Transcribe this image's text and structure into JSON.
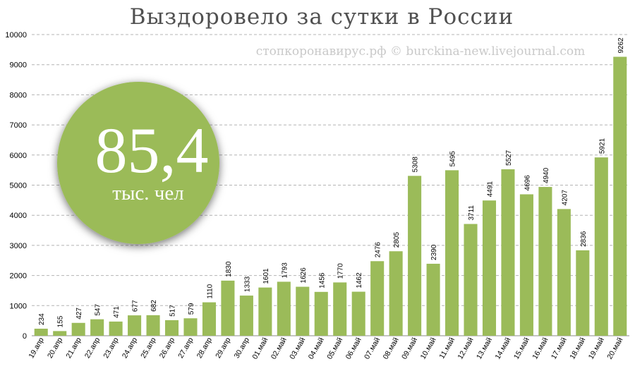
{
  "title": "Выздоровело за сутки в России",
  "watermark": "стопкоронавирус.рф © burckina-new.livejournal.com",
  "badge": {
    "value": "85,4",
    "unit": "тыс. чел",
    "color": "#9bbb59"
  },
  "chart_data": {
    "type": "bar",
    "title": "Выздоровело за сутки в России",
    "xlabel": "",
    "ylabel": "",
    "ylim": [
      0,
      10000
    ],
    "yticks": [
      0,
      1000,
      2000,
      3000,
      4000,
      5000,
      6000,
      7000,
      8000,
      9000,
      10000
    ],
    "grid": true,
    "bar_color": "#9bbb59",
    "categories": [
      "19.апр",
      "20.апр",
      "21.апр",
      "22.апр",
      "23.апр",
      "24.апр",
      "25.апр",
      "26.апр",
      "27.апр",
      "28.апр",
      "29.апр",
      "30.апр",
      "01.май",
      "02.май",
      "03.май",
      "04.май",
      "05.май",
      "06.май",
      "07.май",
      "08.май",
      "09.май",
      "10.май",
      "11.май",
      "12.май",
      "13.май",
      "14.май",
      "15.май",
      "16.май",
      "17.май",
      "18.май",
      "19.май",
      "20.май"
    ],
    "values": [
      234,
      155,
      427,
      547,
      471,
      677,
      682,
      517,
      579,
      1110,
      1830,
      1333,
      1601,
      1793,
      1626,
      1456,
      1770,
      1462,
      2476,
      2805,
      5308,
      2390,
      5495,
      3711,
      4491,
      5527,
      4696,
      4940,
      4207,
      2836,
      5921,
      9262
    ]
  }
}
